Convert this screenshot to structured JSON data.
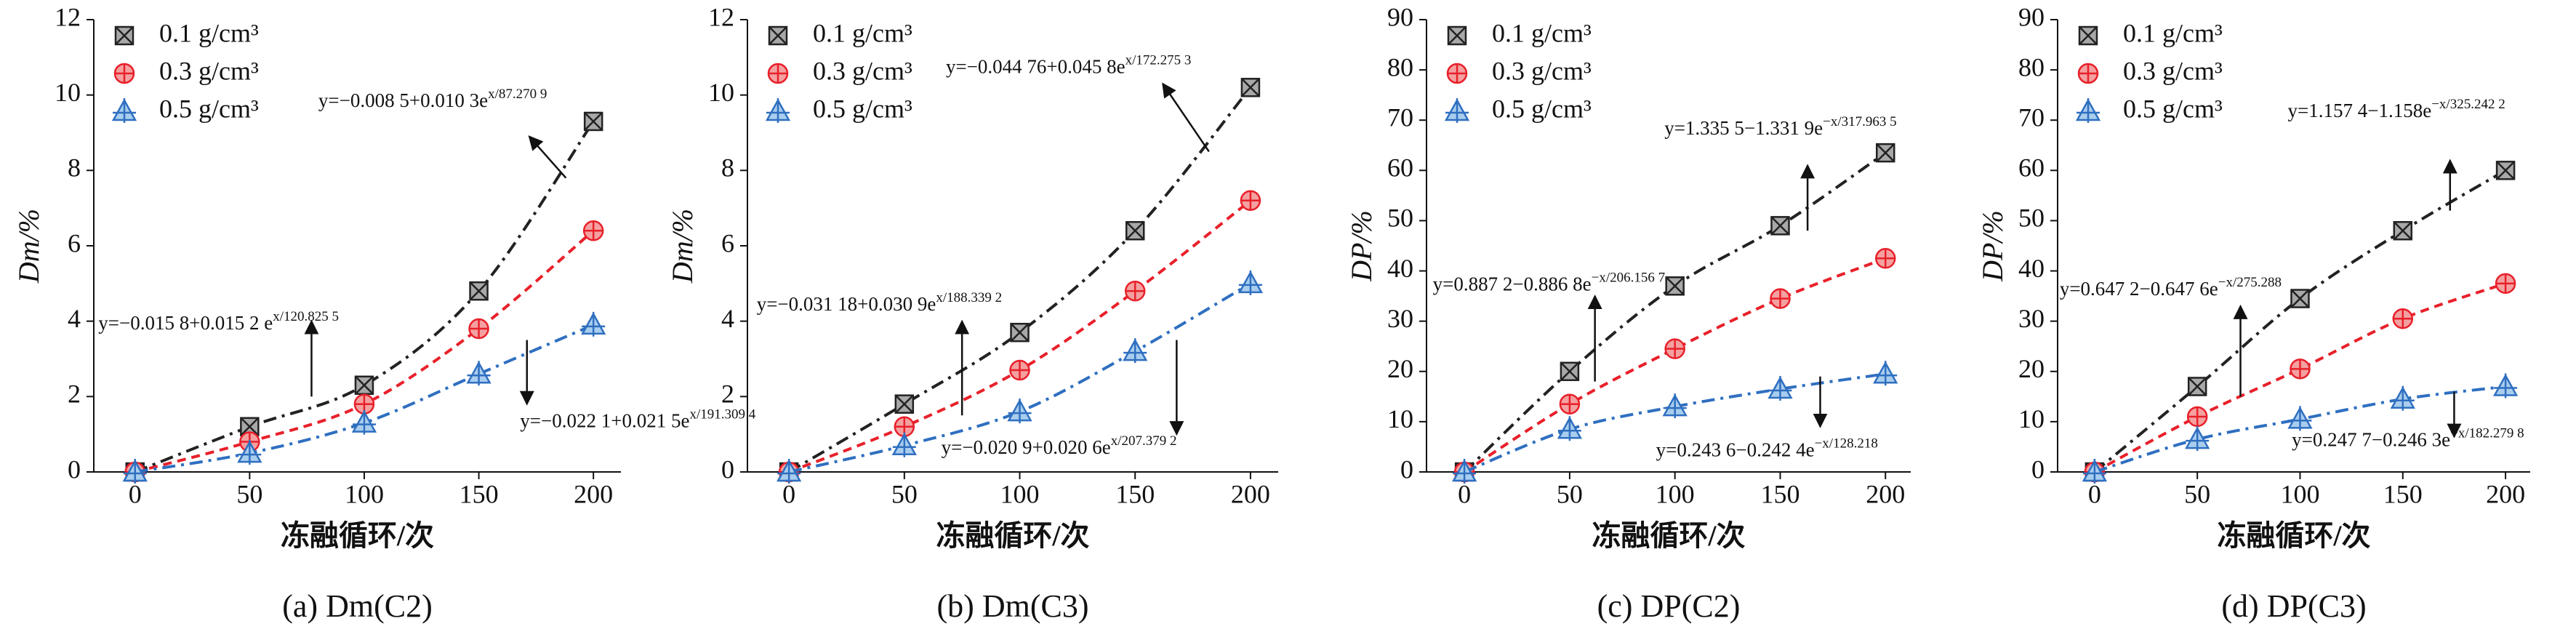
{
  "chart_data": [
    {
      "type": "scatter",
      "caption": "(a) Dm(C2)",
      "xlabel": "冻融循环/次",
      "ylabel": "Dm/%",
      "x": [
        0,
        50,
        100,
        150,
        200
      ],
      "xlim": [
        -18,
        212
      ],
      "xticks": [
        0,
        50,
        100,
        150,
        200
      ],
      "ylim": [
        0,
        12
      ],
      "yticks": [
        0,
        2,
        4,
        6,
        8,
        10,
        12
      ],
      "series": [
        {
          "name": "0.1 g/cm³",
          "color": "#222222",
          "fill": "#a8a8a8",
          "marker": "square",
          "line_style": "dashdot",
          "values": [
            0,
            1.2,
            2.3,
            4.8,
            9.3
          ]
        },
        {
          "name": "0.3 g/cm³",
          "color": "#e8202a",
          "fill": "#f4a0a0",
          "marker": "circle",
          "line_style": "dashed",
          "values": [
            0,
            0.8,
            1.8,
            3.8,
            6.4
          ]
        },
        {
          "name": "0.5 g/cm³",
          "color": "#2f6fc0",
          "fill": "#a9cdee",
          "marker": "triangle",
          "line_style": "dashdot",
          "values": [
            0,
            0.5,
            1.3,
            2.6,
            3.9
          ]
        }
      ],
      "annotations": [
        {
          "text": "y=−0.008 5+0.010 3e",
          "exp": "x/87.270 9"
        },
        {
          "text": "y=−0.015 8+0.015 2 e",
          "exp": "x/120.825 5"
        },
        {
          "text": "y=−0.022 1+0.021 5e",
          "exp": "x/191.309 4"
        }
      ]
    },
    {
      "type": "scatter",
      "caption": "(b) Dm(C3)",
      "xlabel": "冻融循环/次",
      "ylabel": "Dm/%",
      "x": [
        0,
        50,
        100,
        150,
        200
      ],
      "xlim": [
        -18,
        212
      ],
      "xticks": [
        0,
        50,
        100,
        150,
        200
      ],
      "ylim": [
        0,
        12
      ],
      "yticks": [
        0,
        2,
        4,
        6,
        8,
        10,
        12
      ],
      "series": [
        {
          "name": "0.1 g/cm³",
          "color": "#222222",
          "fill": "#a8a8a8",
          "marker": "square",
          "line_style": "dashdot",
          "values": [
            0,
            1.8,
            3.7,
            6.4,
            10.2
          ]
        },
        {
          "name": "0.3 g/cm³",
          "color": "#e8202a",
          "fill": "#f4a0a0",
          "marker": "circle",
          "line_style": "dashed",
          "values": [
            0,
            1.2,
            2.7,
            4.8,
            7.2
          ]
        },
        {
          "name": "0.5 g/cm³",
          "color": "#2f6fc0",
          "fill": "#a9cdee",
          "marker": "triangle",
          "line_style": "dashdot",
          "values": [
            0,
            0.7,
            1.6,
            3.2,
            5.0
          ]
        }
      ],
      "annotations": [
        {
          "text": "y=−0.044 76+0.045 8e",
          "exp": "x/172.275 3"
        },
        {
          "text": "y=−0.031 18+0.030 9e",
          "exp": "x/188.339 2"
        },
        {
          "text": "y=−0.020 9+0.020 6e",
          "exp": "x/207.379 2"
        }
      ]
    },
    {
      "type": "scatter",
      "caption": "(c) DP(C2)",
      "xlabel": "冻融循环/次",
      "ylabel": "DP/%",
      "x": [
        0,
        50,
        100,
        150,
        200
      ],
      "xlim": [
        -18,
        212
      ],
      "xticks": [
        0,
        50,
        100,
        150,
        200
      ],
      "ylim": [
        0,
        90
      ],
      "yticks": [
        0,
        10,
        20,
        30,
        40,
        50,
        60,
        70,
        80,
        90
      ],
      "series": [
        {
          "name": "0.1 g/cm³",
          "color": "#222222",
          "fill": "#a8a8a8",
          "marker": "square",
          "line_style": "dashdot",
          "values": [
            0,
            20,
            37,
            49,
            63.5
          ]
        },
        {
          "name": "0.3 g/cm³",
          "color": "#e8202a",
          "fill": "#f4a0a0",
          "marker": "circle",
          "line_style": "dashed",
          "values": [
            0,
            13.5,
            24.5,
            34.5,
            42.5
          ]
        },
        {
          "name": "0.5 g/cm³",
          "color": "#2f6fc0",
          "fill": "#a9cdee",
          "marker": "triangle",
          "line_style": "dashdot",
          "values": [
            0,
            8.5,
            13,
            16.5,
            19.5
          ]
        }
      ],
      "annotations": [
        {
          "text": "y=1.335 5−1.331 9e",
          "exp": "−x/317.963 5"
        },
        {
          "text": "y=0.887 2−0.886 8e",
          "exp": "−x/206.156 7"
        },
        {
          "text": "y=0.243 6−0.242 4e",
          "exp": "−x/128.218"
        }
      ]
    },
    {
      "type": "scatter",
      "caption": "(d) DP(C3)",
      "xlabel": "冻融循环/次",
      "ylabel": "DP/%",
      "x": [
        0,
        50,
        100,
        150,
        200
      ],
      "xlim": [
        -18,
        212
      ],
      "xticks": [
        0,
        50,
        100,
        150,
        200
      ],
      "ylim": [
        0,
        90
      ],
      "yticks": [
        0,
        10,
        20,
        30,
        40,
        50,
        60,
        70,
        80,
        90
      ],
      "series": [
        {
          "name": "0.1 g/cm³",
          "color": "#222222",
          "fill": "#a8a8a8",
          "marker": "square",
          "line_style": "dashdot",
          "values": [
            0,
            17,
            34.5,
            48,
            60
          ]
        },
        {
          "name": "0.3 g/cm³",
          "color": "#e8202a",
          "fill": "#f4a0a0",
          "marker": "circle",
          "line_style": "dashed",
          "values": [
            0,
            11,
            20.5,
            30.5,
            37.5
          ]
        },
        {
          "name": "0.5 g/cm³",
          "color": "#2f6fc0",
          "fill": "#a9cdee",
          "marker": "triangle",
          "line_style": "dashdot",
          "values": [
            0,
            6.5,
            10.5,
            14.5,
            17
          ]
        }
      ],
      "annotations": [
        {
          "text": "y=1.157 4−1.158e",
          "exp": "−x/325.242 2"
        },
        {
          "text": "y=0.647 2−0.647 6e",
          "exp": "−x/275.288"
        },
        {
          "text": "y=0.247 7−0.246 3e",
          "exp": "−x/182.279 8"
        }
      ]
    }
  ]
}
